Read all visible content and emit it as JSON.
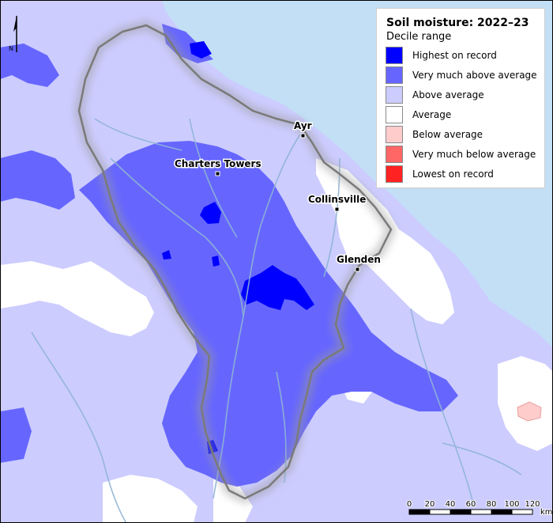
{
  "legend": {
    "title": "Soil moisture: 2022–23",
    "subtitle": "Decile range",
    "items": [
      {
        "label": "Highest on record",
        "color": "#0000ff"
      },
      {
        "label": "Very much above average",
        "color": "#6666ff"
      },
      {
        "label": "Above average",
        "color": "#ccccff"
      },
      {
        "label": "Average",
        "color": "#ffffff"
      },
      {
        "label": "Below average",
        "color": "#ffcccc"
      },
      {
        "label": "Very much below average",
        "color": "#ff6666"
      },
      {
        "label": "Lowest on record",
        "color": "#ff2222"
      }
    ]
  },
  "towns": [
    {
      "name": "Ayr"
    },
    {
      "name": "Charters Towers"
    },
    {
      "name": "Collinsville"
    },
    {
      "name": "Glenden"
    }
  ],
  "north_arrow": {
    "label": "N"
  },
  "scale_bar": {
    "ticks": [
      "0",
      "20",
      "40",
      "60",
      "80",
      "100",
      "120"
    ],
    "unit": "km"
  },
  "colors": {
    "ocean": "#c2dff5",
    "rivers": "#8fb4d4",
    "boundary": "#7a7a7a"
  }
}
